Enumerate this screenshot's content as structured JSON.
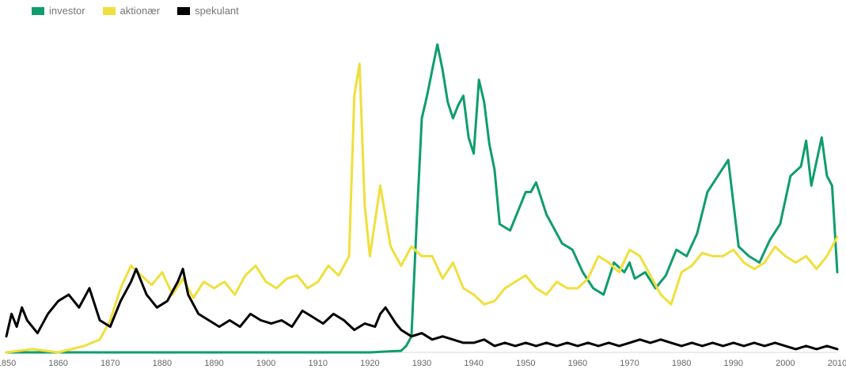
{
  "legend": {
    "items": [
      {
        "label": "investor",
        "color": "#0f9d6e"
      },
      {
        "label": "aktionær",
        "color": "#f0df3c"
      },
      {
        "label": "spekulant",
        "color": "#000000"
      }
    ]
  },
  "chart_data": {
    "type": "line",
    "title": "",
    "xlabel": "",
    "ylabel": "",
    "xlim": [
      1850,
      2010
    ],
    "ylim": [
      0,
      100
    ],
    "grid": false,
    "legend_position": "top-left",
    "x_ticks": [
      "1850",
      "1860",
      "1870",
      "1880",
      "1890",
      "1900",
      "1910",
      "1920",
      "1930",
      "1940",
      "1950",
      "1960",
      "1970",
      "1980",
      "1990",
      "2000",
      "2010"
    ],
    "series": [
      {
        "name": "investor",
        "color": "#0f9d6e",
        "points": [
          [
            1850,
            0
          ],
          [
            1860,
            0
          ],
          [
            1870,
            0
          ],
          [
            1880,
            0
          ],
          [
            1890,
            0
          ],
          [
            1900,
            0
          ],
          [
            1910,
            0
          ],
          [
            1920,
            0
          ],
          [
            1926,
            0.5
          ],
          [
            1927,
            2
          ],
          [
            1928,
            5
          ],
          [
            1929,
            40
          ],
          [
            1930,
            73
          ],
          [
            1931,
            80
          ],
          [
            1932,
            88
          ],
          [
            1933,
            96
          ],
          [
            1934,
            88
          ],
          [
            1935,
            78
          ],
          [
            1936,
            73
          ],
          [
            1937,
            77
          ],
          [
            1938,
            80
          ],
          [
            1939,
            67
          ],
          [
            1940,
            62
          ],
          [
            1941,
            85
          ],
          [
            1942,
            78
          ],
          [
            1943,
            65
          ],
          [
            1944,
            57
          ],
          [
            1945,
            40
          ],
          [
            1947,
            38
          ],
          [
            1950,
            50
          ],
          [
            1951,
            50
          ],
          [
            1952,
            53
          ],
          [
            1954,
            43
          ],
          [
            1955,
            40
          ],
          [
            1957,
            34
          ],
          [
            1959,
            32
          ],
          [
            1961,
            25
          ],
          [
            1963,
            20
          ],
          [
            1965,
            18
          ],
          [
            1967,
            28
          ],
          [
            1969,
            25
          ],
          [
            1970,
            28
          ],
          [
            1971,
            23
          ],
          [
            1973,
            25
          ],
          [
            1975,
            20
          ],
          [
            1977,
            24
          ],
          [
            1979,
            32
          ],
          [
            1981,
            30
          ],
          [
            1983,
            37
          ],
          [
            1985,
            50
          ],
          [
            1987,
            55
          ],
          [
            1989,
            60
          ],
          [
            1991,
            33
          ],
          [
            1993,
            30
          ],
          [
            1995,
            28
          ],
          [
            1997,
            35
          ],
          [
            1999,
            40
          ],
          [
            2001,
            55
          ],
          [
            2003,
            58
          ],
          [
            2004,
            66
          ],
          [
            2005,
            52
          ],
          [
            2007,
            67
          ],
          [
            2008,
            55
          ],
          [
            2009,
            52
          ],
          [
            2010,
            25
          ]
        ]
      },
      {
        "name": "aktionær",
        "color": "#f0df3c",
        "points": [
          [
            1850,
            0
          ],
          [
            1855,
            1
          ],
          [
            1860,
            0
          ],
          [
            1865,
            2
          ],
          [
            1868,
            4
          ],
          [
            1870,
            10
          ],
          [
            1872,
            20
          ],
          [
            1874,
            27
          ],
          [
            1876,
            24
          ],
          [
            1878,
            21
          ],
          [
            1880,
            25
          ],
          [
            1882,
            18
          ],
          [
            1884,
            23
          ],
          [
            1886,
            17
          ],
          [
            1888,
            22
          ],
          [
            1890,
            20
          ],
          [
            1892,
            22
          ],
          [
            1894,
            18
          ],
          [
            1896,
            24
          ],
          [
            1898,
            27
          ],
          [
            1900,
            22
          ],
          [
            1902,
            20
          ],
          [
            1904,
            23
          ],
          [
            1906,
            24
          ],
          [
            1908,
            20
          ],
          [
            1910,
            22
          ],
          [
            1912,
            27
          ],
          [
            1914,
            24
          ],
          [
            1916,
            30
          ],
          [
            1917,
            80
          ],
          [
            1918,
            90
          ],
          [
            1919,
            46
          ],
          [
            1920,
            30
          ],
          [
            1922,
            52
          ],
          [
            1924,
            33
          ],
          [
            1926,
            27
          ],
          [
            1928,
            33
          ],
          [
            1930,
            30
          ],
          [
            1932,
            30
          ],
          [
            1934,
            23
          ],
          [
            1936,
            28
          ],
          [
            1938,
            20
          ],
          [
            1940,
            18
          ],
          [
            1942,
            15
          ],
          [
            1944,
            16
          ],
          [
            1946,
            20
          ],
          [
            1948,
            22
          ],
          [
            1950,
            24
          ],
          [
            1952,
            20
          ],
          [
            1954,
            18
          ],
          [
            1956,
            22
          ],
          [
            1958,
            20
          ],
          [
            1960,
            20
          ],
          [
            1962,
            23
          ],
          [
            1964,
            30
          ],
          [
            1966,
            28
          ],
          [
            1968,
            25
          ],
          [
            1970,
            32
          ],
          [
            1972,
            30
          ],
          [
            1974,
            24
          ],
          [
            1976,
            18
          ],
          [
            1978,
            15
          ],
          [
            1980,
            25
          ],
          [
            1982,
            27
          ],
          [
            1984,
            31
          ],
          [
            1986,
            30
          ],
          [
            1988,
            30
          ],
          [
            1990,
            32
          ],
          [
            1992,
            28
          ],
          [
            1994,
            26
          ],
          [
            1996,
            28
          ],
          [
            1998,
            33
          ],
          [
            2000,
            30
          ],
          [
            2002,
            28
          ],
          [
            2004,
            30
          ],
          [
            2006,
            26
          ],
          [
            2008,
            30
          ],
          [
            2010,
            36
          ]
        ]
      },
      {
        "name": "spekulant",
        "color": "#000000",
        "points": [
          [
            1850,
            5
          ],
          [
            1851,
            12
          ],
          [
            1852,
            8
          ],
          [
            1853,
            14
          ],
          [
            1854,
            10
          ],
          [
            1856,
            6
          ],
          [
            1858,
            12
          ],
          [
            1860,
            16
          ],
          [
            1862,
            18
          ],
          [
            1864,
            14
          ],
          [
            1866,
            20
          ],
          [
            1868,
            10
          ],
          [
            1870,
            8
          ],
          [
            1872,
            16
          ],
          [
            1874,
            22
          ],
          [
            1875,
            26
          ],
          [
            1877,
            18
          ],
          [
            1879,
            14
          ],
          [
            1881,
            16
          ],
          [
            1883,
            22
          ],
          [
            1884,
            26
          ],
          [
            1885,
            18
          ],
          [
            1887,
            12
          ],
          [
            1889,
            10
          ],
          [
            1891,
            8
          ],
          [
            1893,
            10
          ],
          [
            1895,
            8
          ],
          [
            1897,
            12
          ],
          [
            1899,
            10
          ],
          [
            1901,
            9
          ],
          [
            1903,
            10
          ],
          [
            1905,
            8
          ],
          [
            1907,
            13
          ],
          [
            1909,
            11
          ],
          [
            1911,
            9
          ],
          [
            1913,
            12
          ],
          [
            1915,
            10
          ],
          [
            1917,
            7
          ],
          [
            1919,
            9
          ],
          [
            1921,
            8
          ],
          [
            1922,
            12
          ],
          [
            1923,
            14
          ],
          [
            1925,
            9
          ],
          [
            1926,
            7
          ],
          [
            1928,
            5
          ],
          [
            1930,
            6
          ],
          [
            1932,
            4
          ],
          [
            1934,
            5
          ],
          [
            1936,
            4
          ],
          [
            1938,
            3
          ],
          [
            1940,
            3
          ],
          [
            1942,
            4
          ],
          [
            1944,
            2
          ],
          [
            1946,
            3
          ],
          [
            1948,
            2
          ],
          [
            1950,
            3
          ],
          [
            1952,
            2
          ],
          [
            1954,
            3
          ],
          [
            1956,
            2
          ],
          [
            1958,
            3
          ],
          [
            1960,
            2
          ],
          [
            1962,
            3
          ],
          [
            1964,
            2
          ],
          [
            1966,
            3
          ],
          [
            1968,
            2
          ],
          [
            1970,
            3
          ],
          [
            1972,
            4
          ],
          [
            1974,
            3
          ],
          [
            1976,
            4
          ],
          [
            1978,
            3
          ],
          [
            1980,
            2
          ],
          [
            1982,
            3
          ],
          [
            1984,
            2
          ],
          [
            1986,
            3
          ],
          [
            1988,
            2
          ],
          [
            1990,
            3
          ],
          [
            1992,
            2
          ],
          [
            1994,
            3
          ],
          [
            1996,
            2
          ],
          [
            1998,
            3
          ],
          [
            2000,
            2
          ],
          [
            2002,
            1
          ],
          [
            2004,
            2
          ],
          [
            2006,
            1
          ],
          [
            2008,
            2
          ],
          [
            2010,
            1
          ]
        ]
      }
    ]
  }
}
